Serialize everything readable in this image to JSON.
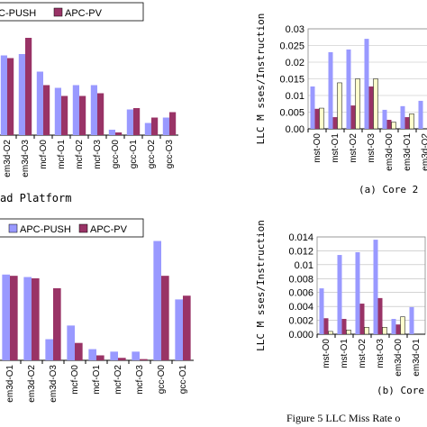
{
  "chart_data": [
    {
      "type": "bar",
      "x_label": "ad Platform",
      "categories": [
        "em3d-O2",
        "em3d-O3",
        "mcf-O0",
        "mcf-O1",
        "mcf-O2",
        "mcf-O3",
        "gcc-O0",
        "gcc-O1",
        "gcc-O2",
        "gcc-O3"
      ],
      "ylim": [
        0,
        1
      ],
      "series": [
        {
          "name": "C-PUSH",
          "color": "#9999ff",
          "values": [
            0.59,
            0.6,
            0.47,
            0.35,
            0.37,
            0.37,
            0.04,
            0.19,
            0.09,
            0.13
          ]
        },
        {
          "name": "APC-PV",
          "color": "#993366",
          "values": [
            0.57,
            0.72,
            0.37,
            0.29,
            0.29,
            0.31,
            0.02,
            0.2,
            0.13,
            0.17
          ]
        }
      ]
    },
    {
      "type": "bar",
      "y_label": "LLC M sses/Instruction",
      "caption": "(a) Core 2",
      "categories": [
        "mst-O0",
        "mst-O1",
        "mst-O2",
        "mst-O3",
        "em3d-O0",
        "em3d-O1",
        "em3d-O2"
      ],
      "ylim": [
        0,
        0.03
      ],
      "yticks": [
        {
          "value": 0,
          "label": "0.00"
        },
        0.005,
        0.01,
        0.015,
        0.02,
        0.025,
        0.03
      ],
      "grid": true,
      "series": [
        {
          "color": "#9999ff",
          "values": [
            0.0127,
            0.023,
            0.0238,
            0.027,
            0.0057,
            0.0068,
            0.0084
          ]
        },
        {
          "color": "#993366",
          "values": [
            0.006,
            0.0035,
            0.007,
            0.0127,
            0.0027,
            0.0035,
            null
          ]
        },
        {
          "color": "#ffffcc",
          "values": [
            0.0062,
            0.0138,
            0.015,
            0.015,
            0.002,
            0.0045,
            null
          ]
        }
      ]
    },
    {
      "type": "bar",
      "categories": [
        "em3d-O1",
        "em3d-O2",
        "em3d-O3",
        "mcf-O0",
        "mcf-O1",
        "mcf-O2",
        "mcf-O3",
        "gcc-O0",
        "gcc-O1"
      ],
      "ylim": [
        0,
        1
      ],
      "series": [
        {
          "name": "APC-PUSH",
          "color": "#9999ff",
          "values": [
            0.69,
            0.67,
            0.17,
            0.28,
            0.09,
            0.07,
            0.07,
            0.96,
            0.49
          ]
        },
        {
          "name": "APC-PV",
          "color": "#993366",
          "values": [
            0.68,
            0.66,
            0.58,
            0.14,
            0.04,
            0.02,
            0.01,
            0.68,
            0.52
          ]
        }
      ]
    },
    {
      "type": "bar",
      "y_label": "LLC M sses/Instruction",
      "caption": "(b) Core",
      "categories": [
        "mst-O0",
        "mst-O1",
        "mst-O2",
        "mst-O3",
        "em3d-O0",
        "em3d-O1"
      ],
      "ylim": [
        0,
        0.014
      ],
      "yticks": [
        {
          "value": 0,
          "label": "0.000"
        },
        0.002,
        0.004,
        0.006,
        0.008,
        0.01,
        0.012,
        0.014
      ],
      "grid": true,
      "series": [
        {
          "color": "#9999ff",
          "values": [
            0.0066,
            0.0114,
            0.0118,
            0.0136,
            0.0022,
            0.0039
          ]
        },
        {
          "color": "#993366",
          "values": [
            0.0023,
            0.0022,
            0.0044,
            0.0052,
            0.0014,
            null
          ]
        },
        {
          "color": "#ffffcc",
          "values": [
            0.0004,
            0.0006,
            0.001,
            0.001,
            0.0025,
            null
          ]
        }
      ]
    }
  ],
  "figure_caption": "Figure 5 LLC Miss Rate o"
}
